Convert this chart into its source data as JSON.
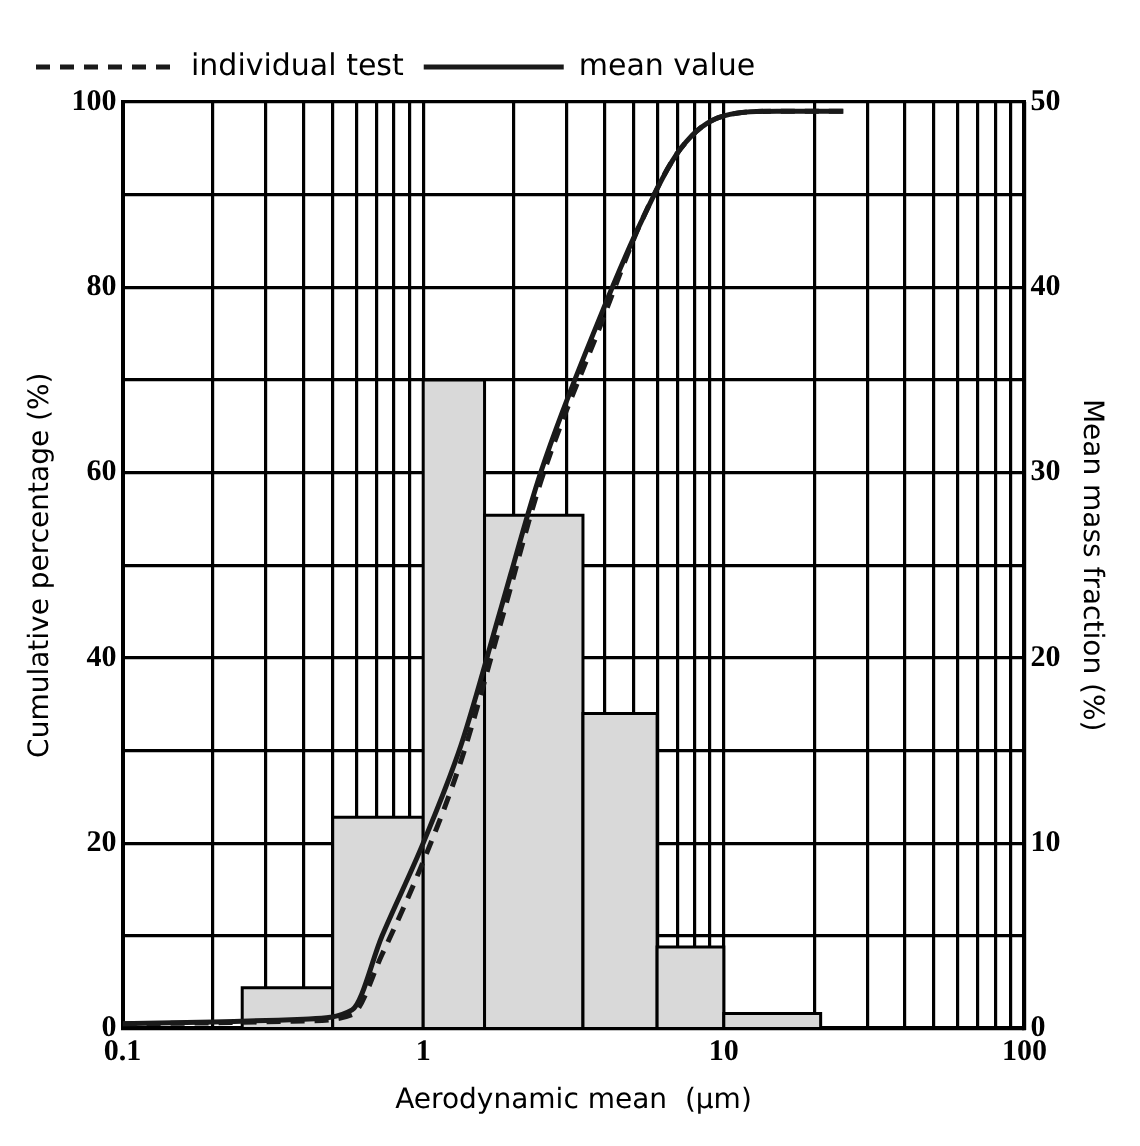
{
  "chart_data": {
    "type": "line",
    "xlabel": "Aerodynamic mean  (µm)",
    "ylabel": "Cumulative percentage (%)",
    "y2label": "Mean mass fraction (%)",
    "log": "x",
    "grid": true,
    "legend": "top left",
    "marker": "none",
    "xlim": [
      0.1,
      100
    ],
    "xticks": [
      0.1,
      {
        "value": 0.2,
        "label": null
      },
      {
        "value": 0.3,
        "label": null
      },
      {
        "value": 0.4,
        "label": null
      },
      {
        "value": 0.5,
        "label": null
      },
      {
        "value": 0.6,
        "label": null
      },
      {
        "value": 0.7,
        "label": null
      },
      {
        "value": 0.8,
        "label": null
      },
      {
        "value": 0.9,
        "label": null
      },
      1,
      {
        "value": 2,
        "label": null
      },
      {
        "value": 3,
        "label": null
      },
      {
        "value": 4,
        "label": null
      },
      {
        "value": 5,
        "label": null
      },
      {
        "value": 6,
        "label": null
      },
      {
        "value": 7,
        "label": null
      },
      {
        "value": 8,
        "label": null
      },
      {
        "value": 9,
        "label": null
      },
      10,
      {
        "value": 20,
        "label": null
      },
      {
        "value": 30,
        "label": null
      },
      {
        "value": 40,
        "label": null
      },
      {
        "value": 50,
        "label": null
      },
      {
        "value": 60,
        "label": null
      },
      {
        "value": 70,
        "label": null
      },
      {
        "value": 80,
        "label": null
      },
      {
        "value": 90,
        "label": null
      },
      100
    ],
    "ylim": [
      0,
      100
    ],
    "yticks": [
      0,
      {
        "value": 10,
        "label": null
      },
      20,
      {
        "value": 30,
        "label": null
      },
      40,
      {
        "value": 50,
        "label": null
      },
      60,
      {
        "value": 70,
        "label": null
      },
      80,
      {
        "value": 90,
        "label": null
      },
      100
    ],
    "y2lim": [
      0,
      50
    ],
    "y2ticks": [
      0,
      10,
      20,
      30,
      40,
      50
    ],
    "series": [
      {
        "type": "histogram",
        "axis": "y2",
        "color": "#d9d9d9",
        "bins": [
          0.25,
          0.5,
          1,
          1.6,
          3.4,
          6,
          10,
          21
        ],
        "values": [
          2.2,
          11.4,
          35,
          27.7,
          17,
          4.4,
          0.8
        ]
      },
      {
        "type": "line",
        "name": "individual test",
        "color": "#1a1a1a",
        "line_style": "dashed",
        "x": [
          0.1,
          0.2,
          0.4,
          0.58,
          0.73,
          1,
          1.34,
          1.82,
          2.46,
          3.9,
          5.3,
          7.2,
          10,
          15,
          25
        ],
        "values": [
          0.5,
          0.6,
          0.8,
          1.5,
          8,
          18,
          29,
          44,
          59,
          76,
          87,
          95,
          98.5,
          99,
          99
        ]
      },
      {
        "type": "line",
        "name": "mean value",
        "color": "#1a1a1a",
        "line_style": "solid",
        "x": [
          0.1,
          0.2,
          0.4,
          0.58,
          0.73,
          1,
          1.34,
          1.82,
          2.46,
          3.9,
          5.3,
          7.2,
          10,
          15,
          25
        ],
        "values": [
          0.5,
          0.7,
          1,
          2,
          10,
          20,
          30.7,
          45.5,
          60,
          77,
          87,
          95,
          98.5,
          99,
          99
        ]
      }
    ]
  }
}
